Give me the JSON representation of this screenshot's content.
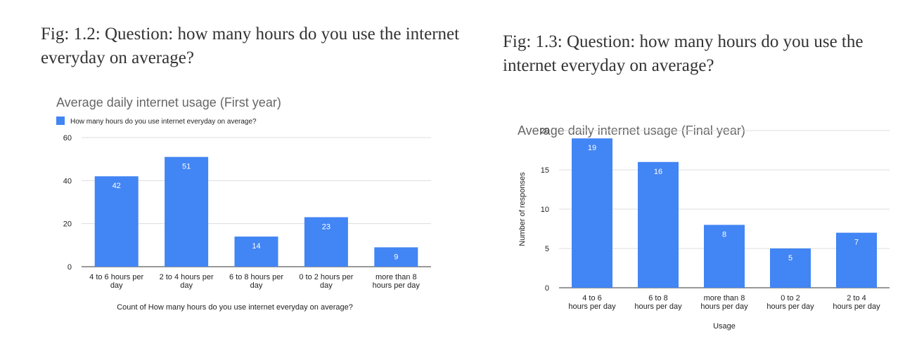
{
  "captions": {
    "left": "Fig: 1.2: Question: how many hours do you use the internet everyday on average?",
    "right": "Fig: 1.3: Question: how many hours do you use the internet everyday on average?"
  },
  "colors": {
    "bar": "#4285f4",
    "grid": "#dddddd",
    "axis": "#333333",
    "title": "#666666",
    "text": "#222222"
  },
  "chart_data": [
    {
      "type": "bar",
      "title": "Average daily internet usage (First year)",
      "categories": [
        "4 to 6 hours per day",
        "2 to 4 hours per day",
        "6 to 8 hours per day",
        "0 to 2 hours per day",
        "more than 8 hours per day"
      ],
      "series": [
        {
          "name": "How many hours do you use internet everyday on average?",
          "values": [
            42,
            51,
            14,
            23,
            9
          ]
        }
      ],
      "xlabel": "Count of How many hours do you use internet everyday on average?",
      "ylabel": "",
      "ylim": [
        0,
        60
      ],
      "yticks": [
        0,
        20,
        40,
        60
      ],
      "grid": true,
      "legend": "top-left",
      "data_labels": true
    },
    {
      "type": "bar",
      "title": "Average daily internet usage (Final year)",
      "categories": [
        "4 to 6 hours per day",
        "6 to 8 hours per day",
        "more than 8 hours per day",
        "0 to 2 hours per day",
        "2 to 4 hours per day"
      ],
      "series": [
        {
          "values": [
            19,
            16,
            8,
            5,
            7
          ]
        }
      ],
      "xlabel": "Usage",
      "ylabel": "Number of responses",
      "ylim": [
        0,
        20
      ],
      "yticks": [
        0,
        5,
        10,
        15,
        20
      ],
      "grid": true,
      "legend": "none",
      "data_labels": true
    }
  ]
}
